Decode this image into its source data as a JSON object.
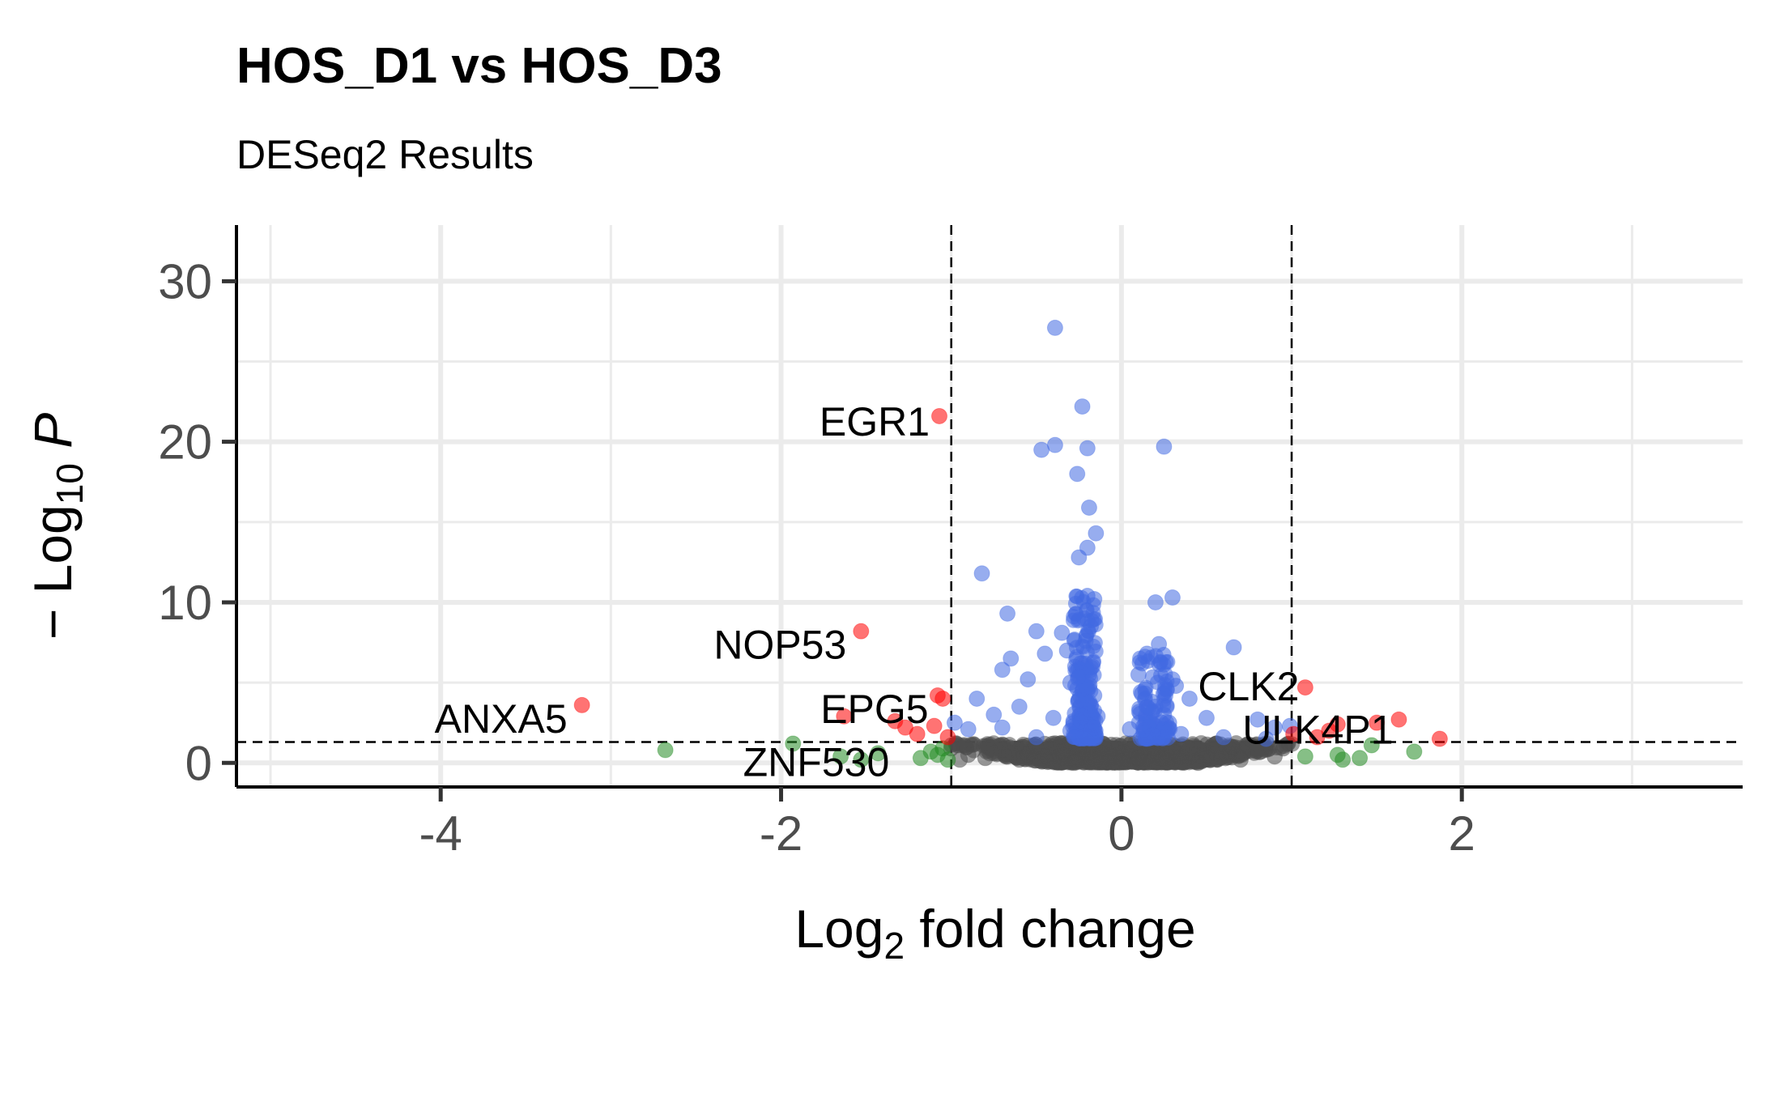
{
  "chart_data": {
    "type": "scatter",
    "title": "HOS_D1 vs HOS_D3",
    "subtitle": "DESeq2 Results",
    "xlabel": "Log2 fold change",
    "ylabel": "- Log10 P",
    "xlim": [
      -5.2,
      3.65
    ],
    "ylim": [
      -1.5,
      33.5
    ],
    "x_ticks": [
      -4,
      -2,
      0,
      2
    ],
    "y_ticks": [
      0,
      10,
      20,
      30
    ],
    "grid": true,
    "legend": "none",
    "fc_cutoffs": [
      -1,
      1
    ],
    "p_cutoff": 1.3,
    "colors": {
      "ns": "#4d4d4d",
      "log2fc": "#228b22",
      "p": "#4169e1",
      "p_and_log2fc": "#ff0000",
      "grid": "#ebebeb",
      "axis": "#000000"
    },
    "series": [
      {
        "key": "ns",
        "color": "#4d4d4d",
        "points": [
          [
            -1.0,
            0.9
          ],
          [
            -0.9,
            0.5
          ],
          [
            -0.8,
            0.3
          ],
          [
            -0.7,
            0.8
          ],
          [
            -0.6,
            0.2
          ],
          [
            -0.5,
            1.0
          ],
          [
            -0.45,
            0.4
          ],
          [
            -0.4,
            0.1
          ],
          [
            -0.35,
            0.7
          ],
          [
            -0.3,
            0.3
          ],
          [
            -0.25,
            1.1
          ],
          [
            -0.2,
            0.6
          ],
          [
            -0.15,
            0.2
          ],
          [
            -0.1,
            0.9
          ],
          [
            -0.05,
            0.4
          ],
          [
            0.0,
            0.1
          ],
          [
            0.05,
            0.8
          ],
          [
            0.1,
            0.3
          ],
          [
            0.15,
            1.0
          ],
          [
            0.2,
            0.5
          ],
          [
            0.25,
            0.2
          ],
          [
            0.3,
            0.7
          ],
          [
            0.35,
            0.4
          ],
          [
            0.4,
            0.9
          ],
          [
            0.5,
            0.3
          ],
          [
            0.6,
            0.6
          ],
          [
            0.7,
            0.2
          ],
          [
            0.8,
            0.8
          ],
          [
            0.9,
            0.4
          ],
          [
            -0.95,
            0.2
          ],
          [
            -0.75,
            0.6
          ],
          [
            -0.55,
            0.5
          ],
          [
            -0.28,
            0.0
          ],
          [
            0.45,
            0.0
          ],
          [
            0.65,
            1.0
          ],
          [
            0.95,
            0.9
          ]
        ]
      },
      {
        "key": "log2fc",
        "color": "#228b22",
        "points": [
          [
            -2.68,
            0.8
          ],
          [
            -1.93,
            1.2
          ],
          [
            -1.65,
            0.4
          ],
          [
            -1.53,
            0.2
          ],
          [
            -1.43,
            0.6
          ],
          [
            -1.18,
            0.3
          ],
          [
            -1.12,
            0.7
          ],
          [
            -1.08,
            0.5
          ],
          [
            -1.05,
            0.9
          ],
          [
            -1.02,
            0.2
          ],
          [
            1.08,
            0.4
          ],
          [
            1.27,
            0.5
          ],
          [
            1.3,
            0.2
          ],
          [
            1.4,
            0.3
          ],
          [
            1.47,
            1.1
          ],
          [
            1.72,
            0.7
          ]
        ]
      },
      {
        "key": "p",
        "color": "#4169e1",
        "points": [
          [
            -0.39,
            27.1
          ],
          [
            -0.23,
            22.2
          ],
          [
            -0.39,
            19.8
          ],
          [
            -0.47,
            19.5
          ],
          [
            -0.2,
            19.6
          ],
          [
            0.25,
            19.7
          ],
          [
            -0.26,
            18.0
          ],
          [
            -0.19,
            15.9
          ],
          [
            -0.15,
            14.3
          ],
          [
            -0.2,
            13.4
          ],
          [
            -0.25,
            12.8
          ],
          [
            -0.82,
            11.8
          ],
          [
            -0.2,
            10.4
          ],
          [
            -0.16,
            10.2
          ],
          [
            0.2,
            10.0
          ],
          [
            0.3,
            10.3
          ],
          [
            -0.67,
            9.3
          ],
          [
            -0.5,
            8.2
          ],
          [
            -0.35,
            8.1
          ],
          [
            0.22,
            7.4
          ],
          [
            0.66,
            7.2
          ],
          [
            -0.65,
            6.5
          ],
          [
            -0.45,
            6.8
          ],
          [
            -0.32,
            7.0
          ],
          [
            0.15,
            6.8
          ],
          [
            -0.7,
            5.8
          ],
          [
            -0.55,
            5.2
          ],
          [
            -0.3,
            5.0
          ],
          [
            0.1,
            5.5
          ],
          [
            0.3,
            5.2
          ],
          [
            -0.85,
            4.0
          ],
          [
            -0.75,
            3.0
          ],
          [
            -0.6,
            3.5
          ],
          [
            -0.4,
            2.8
          ],
          [
            -0.25,
            3.9
          ],
          [
            0.2,
            3.5
          ],
          [
            0.4,
            4.0
          ],
          [
            0.5,
            2.8
          ],
          [
            0.8,
            2.7
          ],
          [
            0.9,
            2.2
          ],
          [
            0.99,
            2.3
          ],
          [
            -0.9,
            2.1
          ],
          [
            -0.98,
            2.5
          ],
          [
            -0.7,
            2.2
          ],
          [
            -0.3,
            2.0
          ],
          [
            0.05,
            2.1
          ],
          [
            0.35,
            1.8
          ],
          [
            0.6,
            1.6
          ],
          [
            0.85,
            1.5
          ],
          [
            -0.5,
            1.6
          ],
          [
            -0.15,
            1.7
          ],
          [
            0.15,
            1.5
          ],
          [
            -0.22,
            9.0
          ],
          [
            -0.18,
            8.5
          ],
          [
            -0.21,
            7.6
          ],
          [
            -0.24,
            6.2
          ],
          [
            -0.17,
            6.0
          ],
          [
            -0.19,
            5.5
          ],
          [
            -0.23,
            4.5
          ],
          [
            -0.16,
            4.2
          ],
          [
            -0.2,
            3.3
          ],
          [
            -0.14,
            2.9
          ],
          [
            0.12,
            4.3
          ],
          [
            0.18,
            3.8
          ],
          [
            0.25,
            3.0
          ],
          [
            0.28,
            2.5
          ],
          [
            0.32,
            4.8
          ]
        ]
      },
      {
        "key": "p_and_log2fc",
        "color": "#ff0000",
        "points": [
          [
            -3.17,
            3.6
          ],
          [
            -1.63,
            2.9
          ],
          [
            -1.53,
            8.2
          ],
          [
            -1.07,
            21.6
          ],
          [
            -1.08,
            4.2
          ],
          [
            -1.05,
            4.0
          ],
          [
            -1.33,
            2.6
          ],
          [
            -1.27,
            2.2
          ],
          [
            -1.2,
            1.8
          ],
          [
            -1.1,
            2.3
          ],
          [
            -1.02,
            1.6
          ],
          [
            1.01,
            1.8
          ],
          [
            1.08,
            4.7
          ],
          [
            1.15,
            1.6
          ],
          [
            1.22,
            2.0
          ],
          [
            1.27,
            2.4
          ],
          [
            1.5,
            2.5
          ],
          [
            1.63,
            2.7
          ],
          [
            1.87,
            1.5
          ]
        ]
      }
    ],
    "annotations": [
      {
        "text": "EGR1",
        "x": -1.07,
        "y": 21.6
      },
      {
        "text": "NOP53",
        "x": -1.53,
        "y": 8.2
      },
      {
        "text": "ANXA5",
        "x": -3.17,
        "y": 3.6
      },
      {
        "text": "EPG5",
        "x": -1.08,
        "y": 4.2
      },
      {
        "text": "ZNF530",
        "x": -1.27,
        "y": 2.2
      },
      {
        "text": "CLK2",
        "x": 1.08,
        "y": 4.7
      },
      {
        "text": "ULK4P1",
        "x": 1.63,
        "y": 2.7
      }
    ]
  }
}
